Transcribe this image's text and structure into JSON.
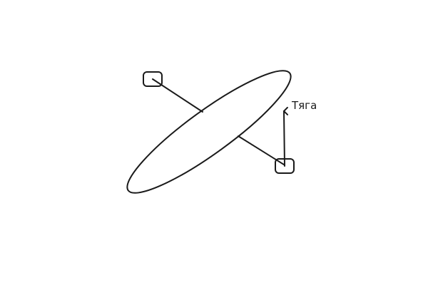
{
  "diagram": {
    "thrust_label": "Тяга"
  }
}
